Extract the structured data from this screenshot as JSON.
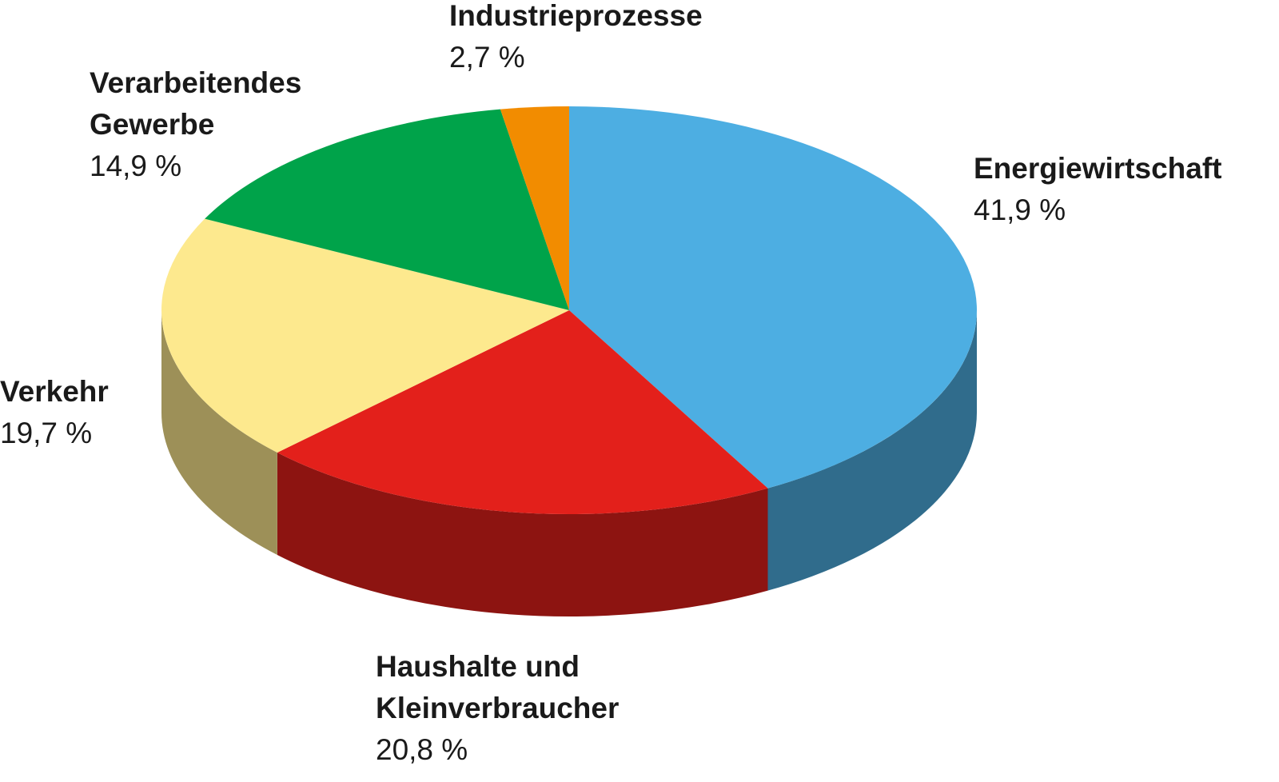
{
  "chart_data": {
    "type": "pie",
    "categories": [
      "Energiewirtschaft",
      "Haushalte und Kleinverbraucher",
      "Verkehr",
      "Verarbeitendes Gewerbe",
      "Industrieprozesse"
    ],
    "values": [
      41.9,
      20.8,
      19.7,
      14.9,
      2.7
    ],
    "value_labels": [
      "41,9 %",
      "20,8 %",
      "19,7 %",
      "14,9 %",
      "2,7 %"
    ],
    "colors": [
      "#4daee2",
      "#e3201b",
      "#fde98e",
      "#00a34a",
      "#f28c00"
    ]
  }
}
